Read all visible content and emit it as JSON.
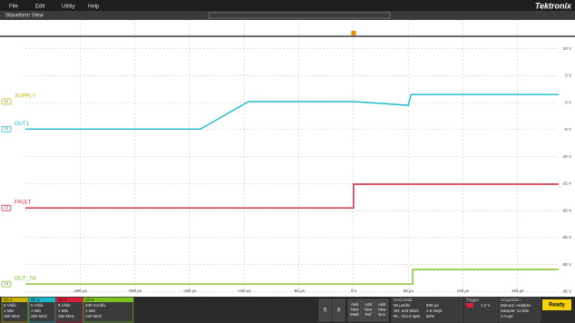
{
  "menu": [
    "File",
    "Edit",
    "Utility",
    "Help"
  ],
  "brand": "Tektronix",
  "view_title": "Waveform View",
  "waveform": {
    "xlim": [
      -300,
      187.5
    ],
    "ylim": [
      -35.6,
      14.8
    ],
    "xticks": [
      {
        "value": -250,
        "label": "-250 µs"
      },
      {
        "value": -200,
        "label": "-200 µs"
      },
      {
        "value": -150,
        "label": "-150 µs"
      },
      {
        "value": -100,
        "label": "-100 µs"
      },
      {
        "value": -50,
        "label": "-50 µs"
      },
      {
        "value": 0,
        "label": "0 s"
      },
      {
        "value": 50,
        "label": "50 µs"
      },
      {
        "value": 100,
        "label": "100 µs"
      },
      {
        "value": 150,
        "label": "150 µs"
      }
    ],
    "yticks": [
      {
        "value": 10,
        "label": "10 V"
      },
      {
        "value": 5,
        "label": "5 V"
      },
      {
        "value": 0,
        "label": "0 V"
      },
      {
        "value": -5,
        "label": "-5 V"
      },
      {
        "value": -10,
        "label": "-10 V"
      },
      {
        "value": -15,
        "label": "-15 V"
      },
      {
        "value": -20,
        "label": "-20 V"
      },
      {
        "value": -25,
        "label": "-25 V"
      },
      {
        "value": -30,
        "label": "-30 V"
      },
      {
        "value": -35,
        "label": "-35 V"
      }
    ],
    "grid": true,
    "traces": [
      {
        "name": "SUPPLY",
        "marker": "C1",
        "color": "#c8b400",
        "level": 0.2
      },
      {
        "name": "OUT1",
        "marker": "C2",
        "color": "#19b9cc",
        "level": -4.9,
        "x": [
          -300,
          -140,
          -96,
          0,
          50,
          52.5,
          187.5
        ],
        "values": [
          -4.9,
          -4.9,
          0.2,
          0.2,
          -0.5,
          1.5,
          1.5
        ]
      },
      {
        "name": "FAULT",
        "marker": "C3",
        "color": "#d8203c",
        "level": -19.5,
        "x": [
          -300,
          0,
          0,
          187.5
        ],
        "values": [
          -19.5,
          -19.5,
          -15.1,
          -15.1
        ]
      },
      {
        "name": "OUT_Tot",
        "marker": "C4",
        "color": "#7cc021",
        "level": -33.6,
        "x": [
          -300,
          54,
          54,
          187.5
        ],
        "values": [
          -33.6,
          -33.6,
          -30.9,
          -30.9
        ]
      }
    ]
  },
  "channels": [
    {
      "title": "Ch 1",
      "color": "#c8b400",
      "lines": [
        "5 V/div",
        "1 MΩ",
        "250 MHz"
      ]
    },
    {
      "title": "Ch 2",
      "color": "#19b9cc",
      "lines": [
        "5 V/div",
        "1 MΩ",
        "250 MHz"
      ]
    },
    {
      "title": "Ch 3",
      "color": "#d8203c",
      "lines": [
        "5 V/div",
        "1 MΩ",
        "250 MHz"
      ]
    },
    {
      "title": "Ch 4",
      "color": "#7cc021",
      "lines": [
        "200 mA/div",
        "1 MΩ",
        "120 MHz"
      ]
    }
  ],
  "buttons": [
    "5",
    "6",
    "Add New Math",
    "Add New Ref",
    "Add New Bus"
  ],
  "horizontal": {
    "title": "Horizontal",
    "left": [
      "50 µs/div",
      "SR: 625 MS/s",
      "RL: 312.5 kpts"
    ],
    "right": [
      "500 µs",
      "1.6 ns/pt",
      "60%"
    ]
  },
  "trigger": {
    "title": "Trigger",
    "level": "1.2 V"
  },
  "acquisition": {
    "title": "Acquisition",
    "lines": [
      "Manual,   Analyze",
      "Sample: 12 bits",
      "2 Acqs"
    ]
  },
  "status": "Ready"
}
